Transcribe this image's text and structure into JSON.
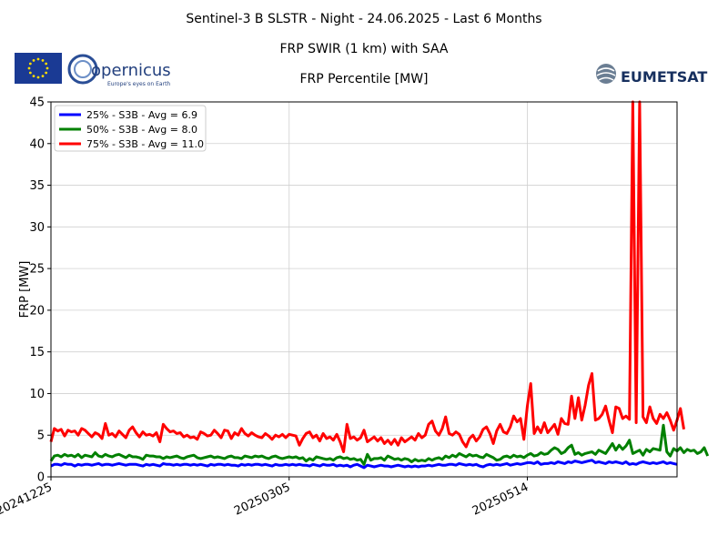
{
  "header": {
    "title": "Sentinel-3 B SLSTR - Night - 24.06.2025 - Last 6 Months",
    "subtitle": "FRP SWIR (1 km) with SAA",
    "subtitle2": "FRP Percentile [MW]"
  },
  "logos": {
    "copernicus_name": "opernicus",
    "copernicus_tagline": "Europe's eyes on Earth",
    "eumetsat_name": "EUMETSAT"
  },
  "chart_data": {
    "type": "line",
    "title": "FRP Percentile [MW]",
    "xlabel": "",
    "ylabel": "FRP [MW]",
    "ylim": [
      0,
      45
    ],
    "yticks": [
      0,
      5,
      10,
      15,
      20,
      25,
      30,
      35,
      40,
      45
    ],
    "xticks": [
      "20241225",
      "20250305",
      "20250514"
    ],
    "x_start": "20241225",
    "grid": true,
    "legend_position": "top-left",
    "series": [
      {
        "name": "25% - S3B - Avg = 6.9",
        "color": "#0000ff",
        "values": [
          1.3,
          1.5,
          1.5,
          1.4,
          1.6,
          1.5,
          1.5,
          1.3,
          1.5,
          1.4,
          1.5,
          1.5,
          1.4,
          1.5,
          1.6,
          1.4,
          1.5,
          1.5,
          1.4,
          1.5,
          1.6,
          1.5,
          1.4,
          1.5,
          1.5,
          1.5,
          1.4,
          1.3,
          1.5,
          1.4,
          1.5,
          1.4,
          1.3,
          1.6,
          1.5,
          1.5,
          1.4,
          1.5,
          1.4,
          1.5,
          1.5,
          1.4,
          1.5,
          1.4,
          1.5,
          1.4,
          1.3,
          1.5,
          1.4,
          1.5,
          1.5,
          1.4,
          1.5,
          1.4,
          1.4,
          1.3,
          1.5,
          1.4,
          1.5,
          1.4,
          1.5,
          1.5,
          1.4,
          1.5,
          1.4,
          1.3,
          1.5,
          1.4,
          1.4,
          1.5,
          1.4,
          1.5,
          1.4,
          1.5,
          1.4,
          1.4,
          1.3,
          1.5,
          1.4,
          1.3,
          1.5,
          1.4,
          1.4,
          1.5,
          1.3,
          1.4,
          1.3,
          1.4,
          1.2,
          1.4,
          1.5,
          1.3,
          1.1,
          1.4,
          1.3,
          1.2,
          1.3,
          1.4,
          1.3,
          1.3,
          1.2,
          1.3,
          1.4,
          1.3,
          1.2,
          1.3,
          1.2,
          1.3,
          1.2,
          1.3,
          1.3,
          1.4,
          1.3,
          1.4,
          1.5,
          1.4,
          1.4,
          1.5,
          1.5,
          1.4,
          1.6,
          1.5,
          1.4,
          1.5,
          1.4,
          1.5,
          1.3,
          1.2,
          1.4,
          1.5,
          1.4,
          1.5,
          1.4,
          1.5,
          1.6,
          1.4,
          1.5,
          1.6,
          1.5,
          1.6,
          1.7,
          1.7,
          1.6,
          1.8,
          1.5,
          1.6,
          1.6,
          1.7,
          1.6,
          1.8,
          1.7,
          1.6,
          1.8,
          1.7,
          1.9,
          1.8,
          1.7,
          1.8,
          1.9,
          2.0,
          1.7,
          1.8,
          1.7,
          1.6,
          1.8,
          1.7,
          1.8,
          1.7,
          1.6,
          1.8,
          1.5,
          1.6,
          1.5,
          1.7,
          1.8,
          1.7,
          1.6,
          1.7,
          1.6,
          1.7,
          1.8,
          1.6,
          1.7,
          1.6,
          1.5
        ]
      },
      {
        "name": "50% - S3B - Avg = 8.0",
        "color": "#008000",
        "values": [
          1.9,
          2.5,
          2.6,
          2.4,
          2.7,
          2.5,
          2.6,
          2.4,
          2.7,
          2.3,
          2.6,
          2.5,
          2.4,
          2.9,
          2.5,
          2.4,
          2.7,
          2.5,
          2.4,
          2.6,
          2.7,
          2.5,
          2.3,
          2.6,
          2.4,
          2.4,
          2.3,
          2.1,
          2.6,
          2.5,
          2.5,
          2.4,
          2.4,
          2.2,
          2.4,
          2.3,
          2.4,
          2.5,
          2.3,
          2.2,
          2.4,
          2.5,
          2.6,
          2.3,
          2.2,
          2.3,
          2.4,
          2.5,
          2.3,
          2.4,
          2.3,
          2.2,
          2.4,
          2.5,
          2.3,
          2.3,
          2.2,
          2.5,
          2.4,
          2.3,
          2.5,
          2.4,
          2.5,
          2.3,
          2.2,
          2.4,
          2.5,
          2.3,
          2.2,
          2.3,
          2.4,
          2.3,
          2.4,
          2.2,
          2.3,
          1.9,
          2.2,
          2.0,
          2.4,
          2.3,
          2.2,
          2.1,
          2.2,
          2.0,
          2.3,
          2.4,
          2.2,
          2.3,
          2.1,
          2.2,
          2.0,
          2.1,
          1.5,
          2.7,
          2.0,
          2.2,
          2.2,
          2.3,
          2.0,
          2.5,
          2.3,
          2.1,
          2.2,
          2.0,
          2.2,
          2.1,
          1.8,
          2.1,
          1.9,
          2.0,
          1.9,
          2.2,
          2.0,
          2.2,
          2.3,
          2.1,
          2.5,
          2.3,
          2.6,
          2.4,
          2.8,
          2.6,
          2.4,
          2.7,
          2.5,
          2.6,
          2.4,
          2.3,
          2.7,
          2.5,
          2.3,
          2.0,
          2.1,
          2.4,
          2.5,
          2.3,
          2.6,
          2.4,
          2.5,
          2.3,
          2.6,
          2.8,
          2.5,
          2.6,
          2.9,
          2.7,
          2.8,
          3.2,
          3.5,
          3.3,
          2.8,
          3.0,
          3.5,
          3.8,
          2.7,
          2.9,
          2.6,
          2.8,
          2.9,
          3.0,
          2.7,
          3.2,
          3.0,
          2.8,
          3.4,
          4.0,
          3.2,
          3.8,
          3.3,
          3.7,
          4.4,
          2.8,
          3.0,
          3.2,
          2.6,
          3.3,
          3.0,
          3.4,
          3.3,
          3.2,
          6.2,
          3.0,
          2.5,
          3.4,
          3.1,
          3.5,
          2.9,
          3.3,
          3.1,
          3.2,
          2.8,
          3.0,
          3.5,
          2.5
        ]
      },
      {
        "name": "75% - S3B - Avg = 11.0",
        "color": "#ff0000",
        "values": [
          4.2,
          5.8,
          5.5,
          5.7,
          4.9,
          5.6,
          5.4,
          5.5,
          5.0,
          5.8,
          5.6,
          5.2,
          4.8,
          5.3,
          5.1,
          4.6,
          6.4,
          5.0,
          5.2,
          4.8,
          5.5,
          5.1,
          4.7,
          5.6,
          6.0,
          5.3,
          4.8,
          5.4,
          5.0,
          5.1,
          4.9,
          5.3,
          4.2,
          6.3,
          5.8,
          5.4,
          5.5,
          5.2,
          5.3,
          4.8,
          5.0,
          4.7,
          4.8,
          4.5,
          5.4,
          5.2,
          4.9,
          5.0,
          5.6,
          5.2,
          4.7,
          5.6,
          5.5,
          4.6,
          5.3,
          5.0,
          5.8,
          5.2,
          4.9,
          5.3,
          5.0,
          4.8,
          4.7,
          5.2,
          4.9,
          4.5,
          5.0,
          4.8,
          5.1,
          4.7,
          5.1,
          5.0,
          4.9,
          3.8,
          4.6,
          5.2,
          5.4,
          4.7,
          5.0,
          4.3,
          5.2,
          4.6,
          4.8,
          4.4,
          5.1,
          4.2,
          3.0,
          6.3,
          4.6,
          4.8,
          4.4,
          4.7,
          5.6,
          4.2,
          4.5,
          4.8,
          4.3,
          4.7,
          4.0,
          4.4,
          3.9,
          4.5,
          3.8,
          4.7,
          4.2,
          4.5,
          4.8,
          4.4,
          5.2,
          4.7,
          5.0,
          6.3,
          6.7,
          5.5,
          5.0,
          5.8,
          7.2,
          5.2,
          5.0,
          5.4,
          5.1,
          4.2,
          3.6,
          4.6,
          5.0,
          4.3,
          4.8,
          5.7,
          6.0,
          5.2,
          4.0,
          5.5,
          6.3,
          5.4,
          5.2,
          6.0,
          7.3,
          6.6,
          7.0,
          4.5,
          8.5,
          11.2,
          5.2,
          6.0,
          5.3,
          6.5,
          5.3,
          5.8,
          6.3,
          5.1,
          7.0,
          6.4,
          6.3,
          9.7,
          7.0,
          9.5,
          6.8,
          8.6,
          11.0,
          12.4,
          6.8,
          7.0,
          7.5,
          8.5,
          6.8,
          5.3,
          8.4,
          8.2,
          7.0,
          7.3,
          6.9,
          45,
          6.5,
          45,
          7.2,
          6.5,
          8.4,
          7.0,
          6.4,
          7.5,
          7.0,
          7.7,
          6.8,
          5.6,
          6.8,
          8.2,
          5.7
        ]
      }
    ]
  }
}
